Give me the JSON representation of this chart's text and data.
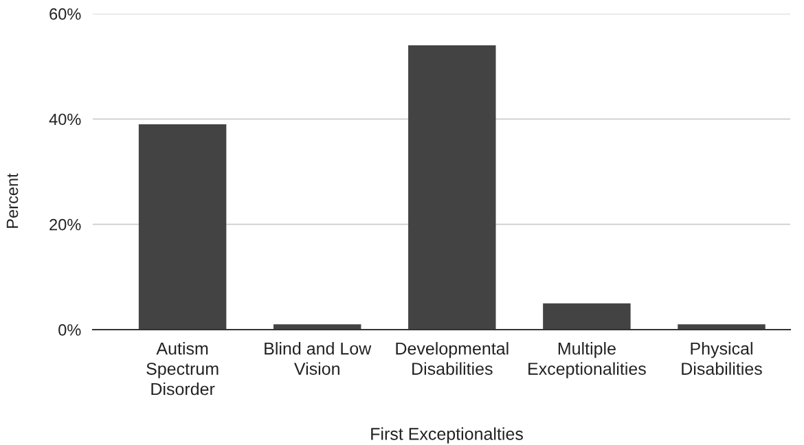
{
  "chart_data": {
    "type": "bar",
    "xlabel": "First Exceptionalties",
    "ylabel": "Percent",
    "categories": [
      "Autism Spectrum Disorder",
      "Blind and Low Vision",
      "Developmental Disabilities",
      "Multiple Exceptionalities",
      "Physical Disabilities"
    ],
    "values": [
      39,
      1,
      54,
      5,
      1
    ],
    "color": "#434343",
    "ylim": [
      0,
      60
    ],
    "yticks": [
      {
        "value": 0,
        "label": "0%"
      },
      {
        "value": 20,
        "label": "20%"
      },
      {
        "value": 40,
        "label": "40%"
      },
      {
        "value": 60,
        "label": "60%"
      }
    ],
    "grid": "y",
    "legend": false
  }
}
